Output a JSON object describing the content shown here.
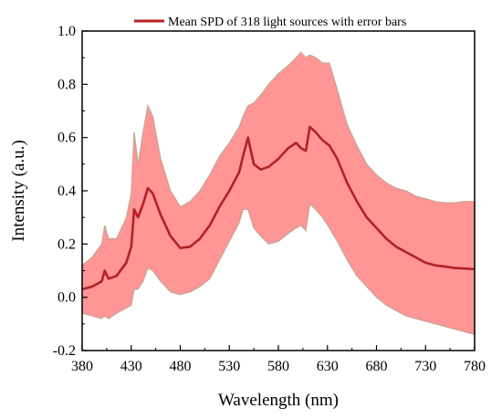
{
  "chart_data": {
    "type": "line",
    "title": "",
    "xlabel": "Wavelength (nm)",
    "ylabel": "Intensity (a.u.)",
    "xlim": [
      380,
      780
    ],
    "ylim": [
      -0.2,
      1.0
    ],
    "x_ticks": [
      380,
      430,
      480,
      530,
      580,
      630,
      680,
      730,
      780
    ],
    "y_ticks": [
      -0.2,
      0.0,
      0.2,
      0.4,
      0.6,
      0.8,
      1.0
    ],
    "x_tick_labels": [
      "380",
      "430",
      "480",
      "530",
      "580",
      "630",
      "680",
      "730",
      "780"
    ],
    "y_tick_labels": [
      "-0.2",
      "0.0",
      "0.2",
      "0.4",
      "0.6",
      "0.8",
      "1.0"
    ],
    "legend": {
      "position": "top",
      "label": "Mean SPD of 318 light sources with error bars"
    },
    "colors": {
      "mean_line": "#b22222",
      "band_fill": "#ff9595",
      "band_edge": "#c4a896"
    },
    "series": [
      {
        "name": "Mean SPD of 318 light sources with error bars",
        "x": [
          380,
          390,
          400,
          403,
          407,
          415,
          425,
          430,
          433,
          437,
          442,
          447,
          452,
          460,
          470,
          480,
          490,
          500,
          510,
          520,
          530,
          540,
          544,
          549,
          555,
          562,
          570,
          580,
          590,
          598,
          603,
          608,
          612,
          618,
          625,
          632,
          640,
          650,
          660,
          670,
          680,
          690,
          700,
          710,
          720,
          730,
          740,
          750,
          760,
          770,
          780
        ],
        "mean": [
          0.03,
          0.04,
          0.06,
          0.1,
          0.07,
          0.08,
          0.13,
          0.19,
          0.33,
          0.3,
          0.35,
          0.41,
          0.39,
          0.31,
          0.23,
          0.185,
          0.19,
          0.22,
          0.27,
          0.34,
          0.4,
          0.47,
          0.53,
          0.6,
          0.5,
          0.48,
          0.49,
          0.52,
          0.56,
          0.58,
          0.56,
          0.55,
          0.64,
          0.62,
          0.59,
          0.57,
          0.52,
          0.43,
          0.36,
          0.3,
          0.26,
          0.22,
          0.19,
          0.17,
          0.15,
          0.13,
          0.12,
          0.115,
          0.11,
          0.108,
          0.105
        ],
        "upper": [
          0.12,
          0.15,
          0.2,
          0.27,
          0.22,
          0.22,
          0.3,
          0.39,
          0.62,
          0.5,
          0.62,
          0.72,
          0.68,
          0.52,
          0.4,
          0.34,
          0.36,
          0.4,
          0.46,
          0.53,
          0.58,
          0.64,
          0.68,
          0.72,
          0.73,
          0.76,
          0.8,
          0.84,
          0.87,
          0.9,
          0.92,
          0.9,
          0.91,
          0.9,
          0.88,
          0.88,
          0.78,
          0.65,
          0.57,
          0.5,
          0.46,
          0.43,
          0.41,
          0.4,
          0.38,
          0.37,
          0.36,
          0.355,
          0.355,
          0.36,
          0.36
        ],
        "lower": [
          -0.06,
          -0.07,
          -0.08,
          -0.07,
          -0.08,
          -0.06,
          -0.04,
          -0.03,
          0.03,
          0.03,
          0.06,
          0.11,
          0.1,
          0.06,
          0.02,
          0.01,
          0.02,
          0.04,
          0.07,
          0.14,
          0.21,
          0.28,
          0.33,
          0.33,
          0.26,
          0.23,
          0.2,
          0.21,
          0.24,
          0.26,
          0.27,
          0.25,
          0.35,
          0.33,
          0.3,
          0.26,
          0.21,
          0.14,
          0.08,
          0.04,
          0.0,
          -0.03,
          -0.05,
          -0.07,
          -0.08,
          -0.09,
          -0.1,
          -0.11,
          -0.12,
          -0.13,
          -0.14
        ]
      }
    ]
  }
}
